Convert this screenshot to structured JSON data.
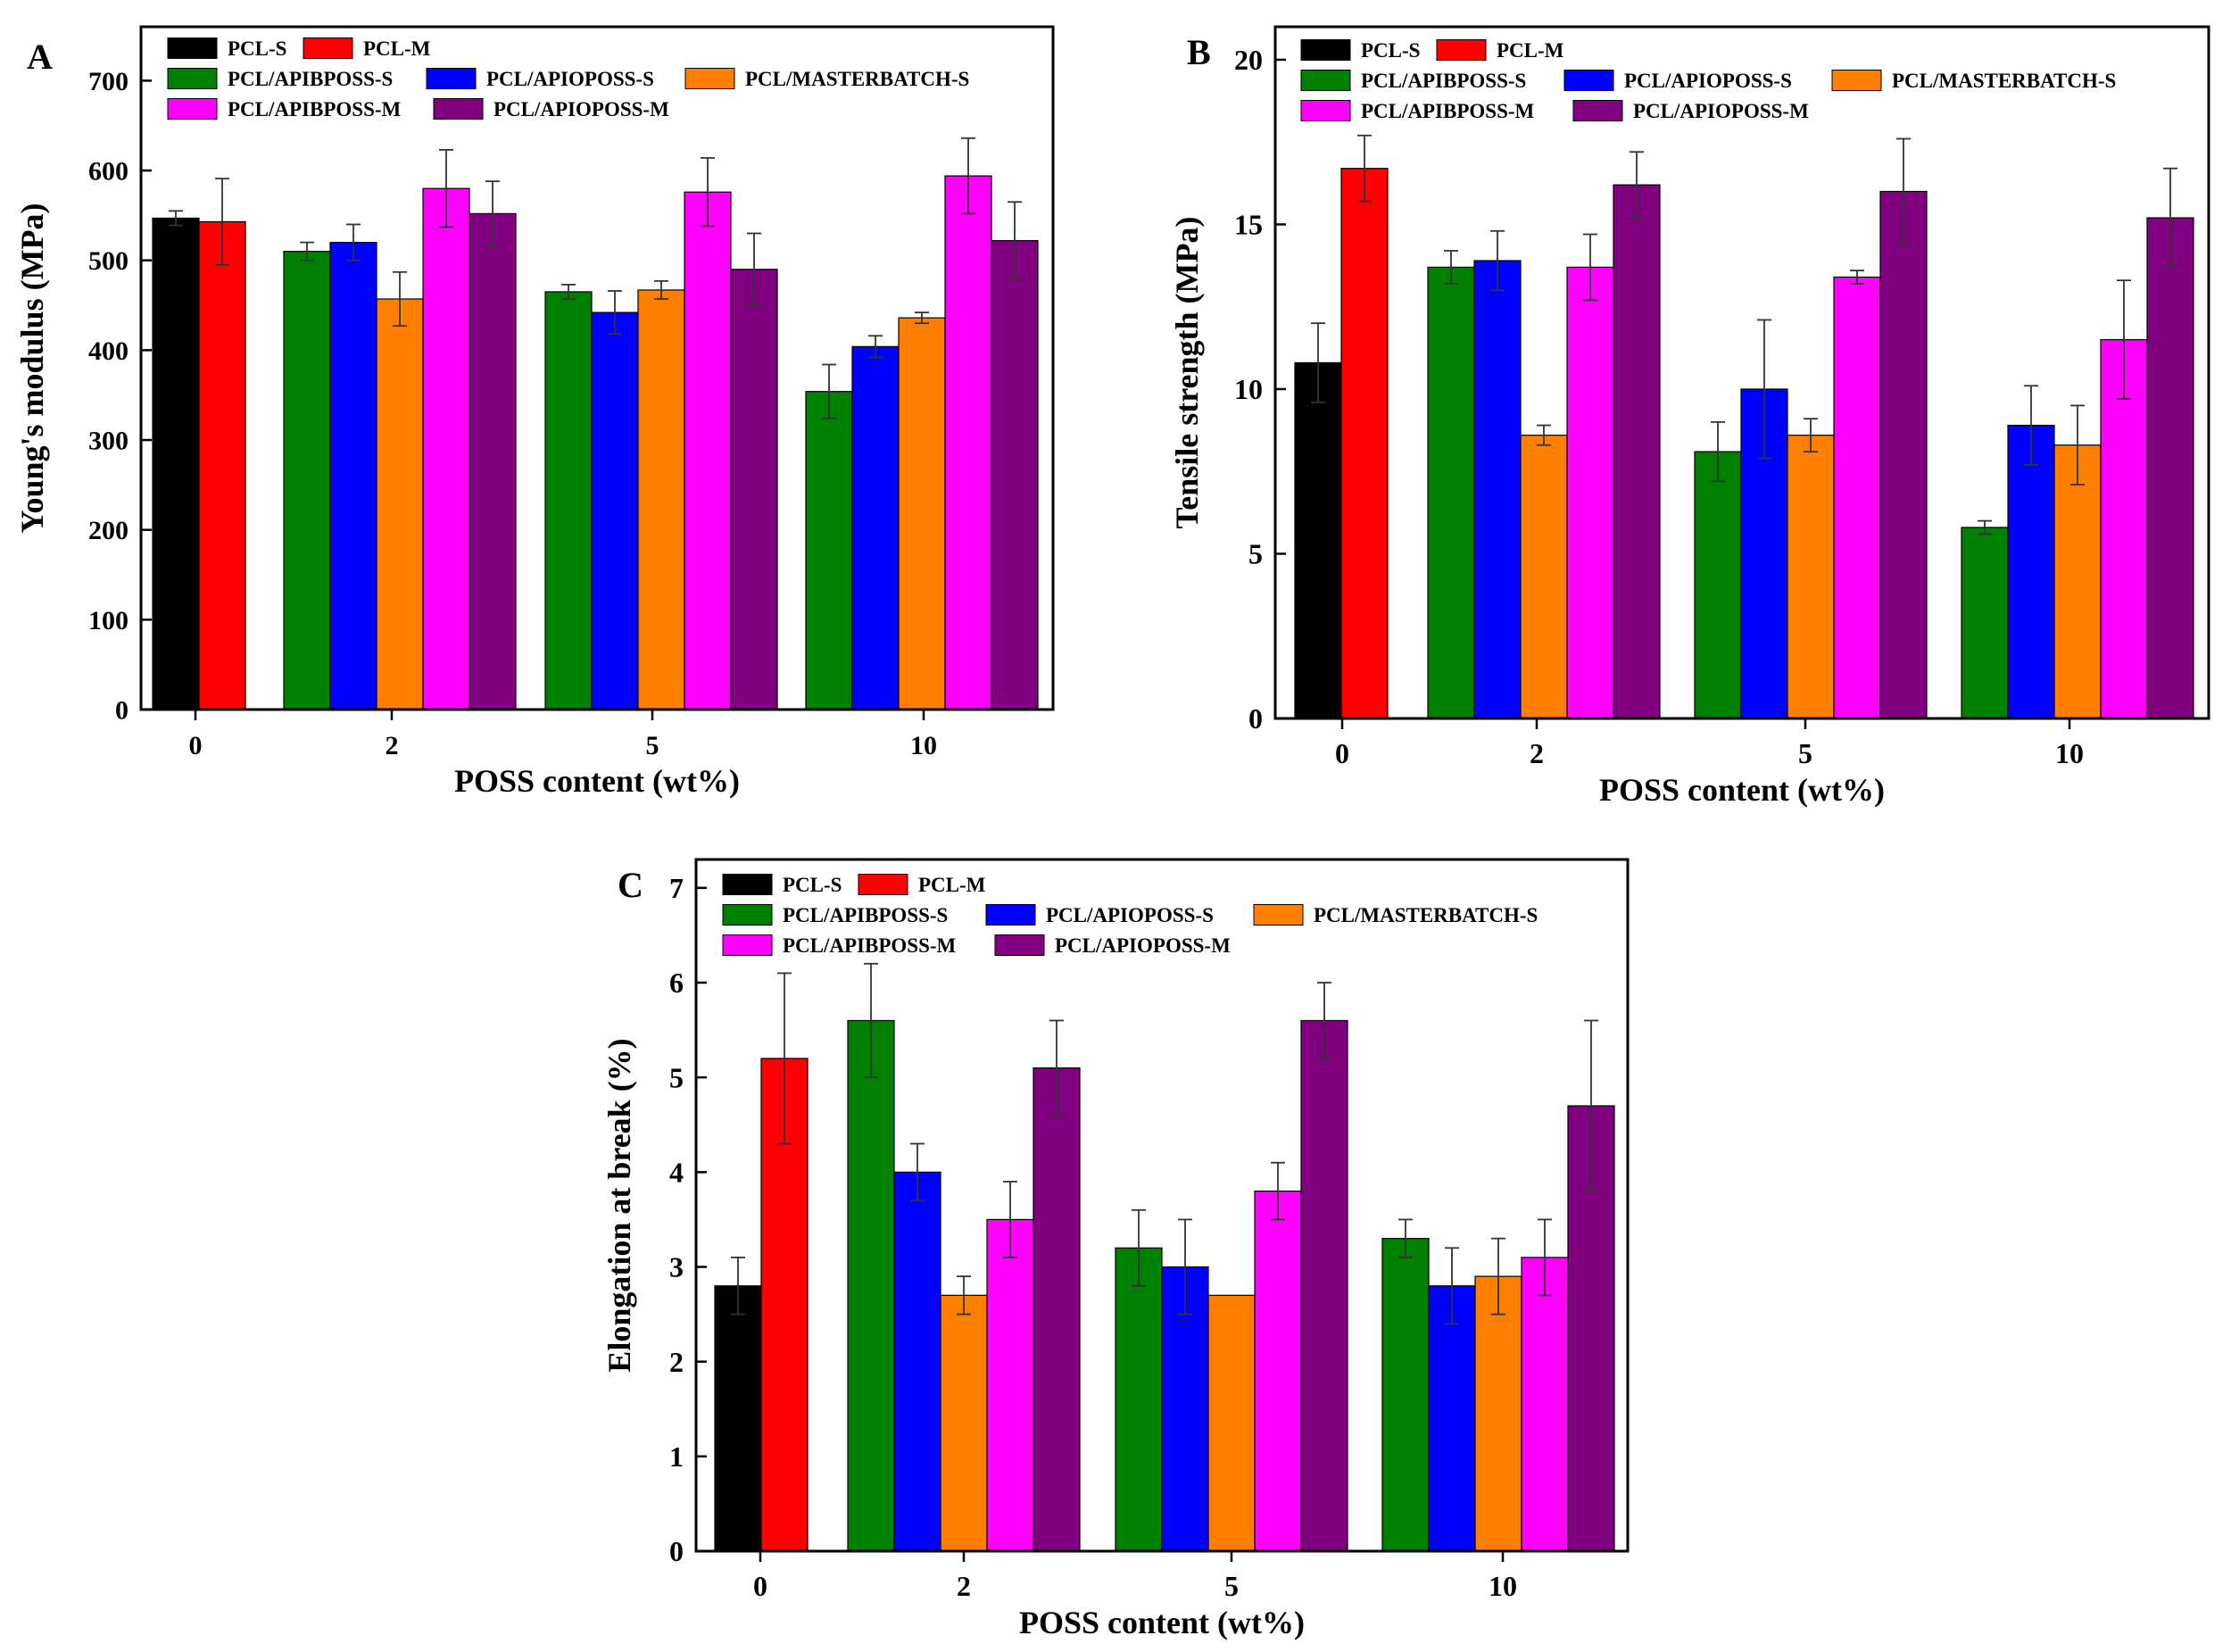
{
  "figure": {
    "series": [
      {
        "name": "PCL-S",
        "color": "#000000"
      },
      {
        "name": "PCL-M",
        "color": "#ff0000"
      },
      {
        "name": "PCL/APIBPOSS-S",
        "color": "#008000"
      },
      {
        "name": "PCL/APIOPOSS-S",
        "color": "#0000ff"
      },
      {
        "name": "PCL/MASTERBATCH-S",
        "color": "#ff8000"
      },
      {
        "name": "PCL/APIBPOSS-M",
        "color": "#ff00ff"
      },
      {
        "name": "PCL/APIOPOSS-M",
        "color": "#800080"
      }
    ]
  },
  "chart_data": [
    {
      "panel": "A",
      "type": "bar",
      "title": "",
      "xlabel": "POSS content (wt%)",
      "ylabel": "Young's modulus (MPa)",
      "ylim": [
        0,
        760
      ],
      "yticks": [
        0,
        100,
        200,
        300,
        400,
        500,
        600,
        700
      ],
      "categories": [
        "0",
        "2",
        "5",
        "10"
      ],
      "series": [
        {
          "name": "PCL-S",
          "values": [
            547,
            null,
            null,
            null
          ],
          "errors": [
            8,
            null,
            null,
            null
          ]
        },
        {
          "name": "PCL-M",
          "values": [
            543,
            null,
            null,
            null
          ],
          "errors": [
            48,
            null,
            null,
            null
          ]
        },
        {
          "name": "PCL/APIBPOSS-S",
          "values": [
            null,
            510,
            465,
            354
          ],
          "errors": [
            null,
            10,
            8,
            30
          ]
        },
        {
          "name": "PCL/APIOPOSS-S",
          "values": [
            null,
            520,
            442,
            404
          ],
          "errors": [
            null,
            20,
            24,
            12
          ]
        },
        {
          "name": "PCL/MASTERBATCH-S",
          "values": [
            null,
            457,
            467,
            436
          ],
          "errors": [
            null,
            30,
            10,
            6
          ]
        },
        {
          "name": "PCL/APIBPOSS-M",
          "values": [
            null,
            580,
            576,
            594
          ],
          "errors": [
            null,
            43,
            38,
            42
          ]
        },
        {
          "name": "PCL/APIOPOSS-M",
          "values": [
            null,
            552,
            490,
            522
          ],
          "errors": [
            null,
            36,
            40,
            43
          ]
        }
      ]
    },
    {
      "panel": "B",
      "type": "bar",
      "title": "",
      "xlabel": "POSS content (wt%)",
      "ylabel": "Tensile strength (MPa)",
      "ylim": [
        0,
        21
      ],
      "yticks": [
        0,
        5,
        10,
        15,
        20
      ],
      "categories": [
        "0",
        "2",
        "5",
        "10"
      ],
      "series": [
        {
          "name": "PCL-S",
          "values": [
            10.8,
            null,
            null,
            null
          ],
          "errors": [
            1.2,
            null,
            null,
            null
          ]
        },
        {
          "name": "PCL-M",
          "values": [
            16.7,
            null,
            null,
            null
          ],
          "errors": [
            1.0,
            null,
            null,
            null
          ]
        },
        {
          "name": "PCL/APIBPOSS-S",
          "values": [
            null,
            13.7,
            8.1,
            5.8
          ],
          "errors": [
            null,
            0.5,
            0.9,
            0.2
          ]
        },
        {
          "name": "PCL/APIOPOSS-S",
          "values": [
            null,
            13.9,
            10.0,
            8.9
          ],
          "errors": [
            null,
            0.9,
            2.1,
            1.2
          ]
        },
        {
          "name": "PCL/MASTERBATCH-S",
          "values": [
            null,
            8.6,
            8.6,
            8.3
          ],
          "errors": [
            null,
            0.3,
            0.5,
            1.2
          ]
        },
        {
          "name": "PCL/APIBPOSS-M",
          "values": [
            null,
            13.7,
            13.4,
            11.5
          ],
          "errors": [
            null,
            1.0,
            0.2,
            1.8
          ]
        },
        {
          "name": "PCL/APIOPOSS-M",
          "values": [
            null,
            16.2,
            16.0,
            15.2
          ],
          "errors": [
            null,
            1.0,
            1.6,
            1.5
          ]
        }
      ]
    },
    {
      "panel": "C",
      "type": "bar",
      "title": "",
      "xlabel": "POSS content (wt%)",
      "ylabel": "Elongation at break (%)",
      "ylim": [
        0,
        7.3
      ],
      "yticks": [
        0,
        1,
        2,
        3,
        4,
        5,
        6,
        7
      ],
      "categories": [
        "0",
        "2",
        "5",
        "10"
      ],
      "series": [
        {
          "name": "PCL-S",
          "values": [
            2.8,
            null,
            null,
            null
          ],
          "errors": [
            0.3,
            null,
            null,
            null
          ]
        },
        {
          "name": "PCL-M",
          "values": [
            5.2,
            null,
            null,
            null
          ],
          "errors": [
            0.9,
            null,
            null,
            null
          ]
        },
        {
          "name": "PCL/APIBPOSS-S",
          "values": [
            null,
            5.6,
            3.2,
            3.3
          ],
          "errors": [
            null,
            0.6,
            0.4,
            0.2
          ]
        },
        {
          "name": "PCL/APIOPOSS-S",
          "values": [
            null,
            4.0,
            3.0,
            2.8
          ],
          "errors": [
            null,
            0.3,
            0.5,
            0.4
          ]
        },
        {
          "name": "PCL/MASTERBATCH-S",
          "values": [
            null,
            2.7,
            2.7,
            2.9
          ],
          "errors": [
            null,
            0.2,
            0.0,
            0.4
          ]
        },
        {
          "name": "PCL/APIBPOSS-M",
          "values": [
            null,
            3.5,
            3.8,
            3.1
          ],
          "errors": [
            null,
            0.4,
            0.3,
            0.4
          ]
        },
        {
          "name": "PCL/APIOPOSS-M",
          "values": [
            null,
            5.1,
            5.6,
            4.7
          ],
          "errors": [
            null,
            0.5,
            0.4,
            0.9
          ]
        }
      ]
    }
  ]
}
